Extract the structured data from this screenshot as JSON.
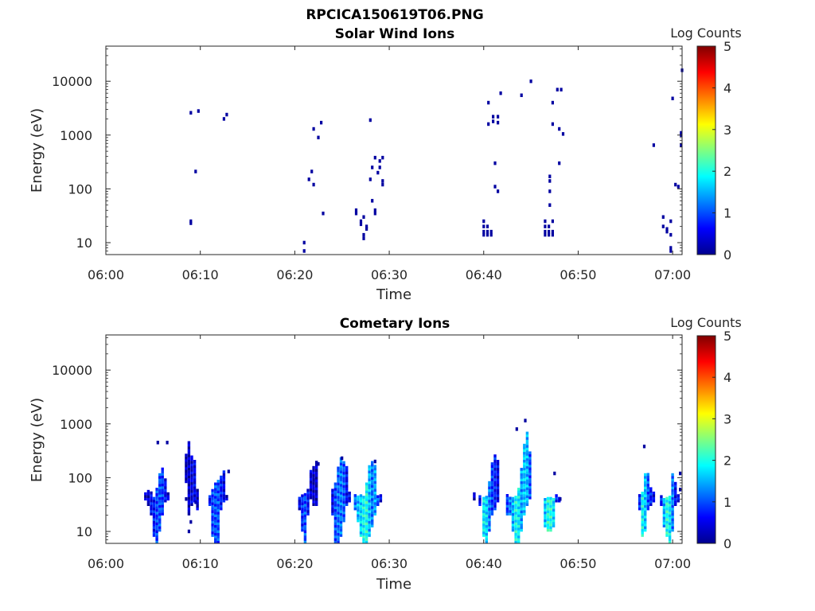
{
  "figure_title": "RPCICA150619T06.PNG",
  "colormap": [
    "#00008f",
    "#0000ff",
    "#0080ff",
    "#00ffff",
    "#80ff80",
    "#ffff00",
    "#ff8000",
    "#ff0000",
    "#800000"
  ],
  "chart_data": [
    {
      "type": "heatmap",
      "title": "Solar Wind Ions",
      "xlabel": "Time",
      "ylabel": "Energy (eV)",
      "y_scale": "log",
      "xlim": [
        "06:00",
        "07:01"
      ],
      "ylim": [
        6,
        45000
      ],
      "x_ticks": [
        "06:00",
        "06:10",
        "06:20",
        "06:30",
        "06:40",
        "06:50",
        "07:00"
      ],
      "y_ticks": [
        "10",
        "100",
        "1000",
        "10000"
      ],
      "colorbar": {
        "label": "Log Counts",
        "range": [
          0,
          5
        ],
        "ticks": [
          "0",
          "1",
          "2",
          "3",
          "4",
          "5"
        ]
      },
      "grid": false,
      "cells": [
        [
          "06:09.0",
          2600,
          0.1
        ],
        [
          "06:09.8",
          2800,
          0.1
        ],
        [
          "06:12.5",
          2000,
          0.1
        ],
        [
          "06:12.8",
          2400,
          0.1
        ],
        [
          "06:09.5",
          210,
          0.1
        ],
        [
          "06:09.0",
          25,
          0.1
        ],
        [
          "06:09.0",
          23,
          0.1
        ],
        [
          "06:21.0",
          10,
          0.1
        ],
        [
          "06:21.0",
          7,
          0.1
        ],
        [
          "06:21.5",
          150,
          0.1
        ],
        [
          "06:21.8",
          210,
          0.1
        ],
        [
          "06:22.0",
          120,
          0.1
        ],
        [
          "06:22.0",
          1300,
          0.1
        ],
        [
          "06:22.5",
          900,
          0.1
        ],
        [
          "06:22.8",
          1700,
          0.1
        ],
        [
          "06:23.0",
          35,
          0.1
        ],
        [
          "06:26.5",
          40,
          0.1
        ],
        [
          "06:26.5",
          35,
          0.1
        ],
        [
          "06:27.0",
          25,
          0.1
        ],
        [
          "06:27.0",
          22,
          0.1
        ],
        [
          "06:27.3",
          30,
          0.1
        ],
        [
          "06:27.3",
          14,
          0.1
        ],
        [
          "06:27.3",
          12,
          0.1
        ],
        [
          "06:27.6",
          20,
          0.1
        ],
        [
          "06:27.6",
          18,
          0.1
        ],
        [
          "06:28.0",
          1900,
          0.1
        ],
        [
          "06:28.0",
          150,
          0.1
        ],
        [
          "06:28.2",
          250,
          0.1
        ],
        [
          "06:28.2",
          60,
          0.1
        ],
        [
          "06:28.5",
          380,
          0.1
        ],
        [
          "06:28.5",
          40,
          0.1
        ],
        [
          "06:28.8",
          200,
          0.1
        ],
        [
          "06:29.0",
          330,
          0.1
        ],
        [
          "06:29.0",
          250,
          0.1
        ],
        [
          "06:29.3",
          380,
          0.1
        ],
        [
          "06:29.3",
          140,
          0.1
        ],
        [
          "06:29.3",
          120,
          0.1
        ],
        [
          "06:28.5",
          35,
          0.1
        ],
        [
          "06:40.5",
          4000,
          0.1
        ],
        [
          "06:40.5",
          1600,
          0.1
        ],
        [
          "06:41.0",
          2200,
          0.1
        ],
        [
          "06:41.0",
          1800,
          0.1
        ],
        [
          "06:41.5",
          2200,
          0.1
        ],
        [
          "06:41.5",
          1700,
          0.1
        ],
        [
          "06:41.8",
          6000,
          0.1
        ],
        [
          "06:41.2",
          300,
          0.1
        ],
        [
          "06:41.2",
          110,
          0.1
        ],
        [
          "06:41.5",
          90,
          0.1
        ],
        [
          "06:44.0",
          5500,
          0.1
        ],
        [
          "06:45.0",
          10000,
          0.1
        ],
        [
          "06:40.0",
          25,
          0.1
        ],
        [
          "06:40.0",
          20,
          0.1
        ],
        [
          "06:40.0",
          16,
          0.1
        ],
        [
          "06:40.0",
          14,
          0.1
        ],
        [
          "06:40.4",
          20,
          0.1
        ],
        [
          "06:40.4",
          16,
          0.1
        ],
        [
          "06:40.4",
          14,
          0.1
        ],
        [
          "06:40.8",
          16,
          0.1
        ],
        [
          "06:40.8",
          14,
          0.1
        ],
        [
          "06:46.5",
          25,
          0.1
        ],
        [
          "06:46.5",
          20,
          0.1
        ],
        [
          "06:46.5",
          16,
          0.1
        ],
        [
          "06:46.5",
          14,
          0.1
        ],
        [
          "06:46.9",
          20,
          0.1
        ],
        [
          "06:46.9",
          16,
          0.1
        ],
        [
          "06:46.9",
          14,
          0.1
        ],
        [
          "06:47.3",
          25,
          0.1
        ],
        [
          "06:47.3",
          16,
          0.1
        ],
        [
          "06:47.3",
          14,
          0.1
        ],
        [
          "06:47.0",
          170,
          0.1
        ],
        [
          "06:47.0",
          140,
          0.1
        ],
        [
          "06:47.0",
          50,
          0.1
        ],
        [
          "06:47.0",
          90,
          0.1
        ],
        [
          "06:47.3",
          1600,
          0.1
        ],
        [
          "06:47.3",
          4000,
          0.1
        ],
        [
          "06:47.8",
          7000,
          0.1
        ],
        [
          "06:48.2",
          7000,
          0.1
        ],
        [
          "06:48.0",
          1300,
          0.1
        ],
        [
          "06:48.4",
          1050,
          0.1
        ],
        [
          "06:48.0",
          300,
          0.1
        ],
        [
          "06:58.0",
          650,
          0.1
        ],
        [
          "06:59.0",
          30,
          0.1
        ],
        [
          "06:59.0",
          20,
          0.1
        ],
        [
          "06:59.4",
          18,
          0.1
        ],
        [
          "06:59.4",
          16,
          0.1
        ],
        [
          "06:59.8",
          25,
          0.1
        ],
        [
          "06:59.8",
          14,
          0.1
        ],
        [
          "06:59.8",
          8,
          0.1
        ],
        [
          "06:59.8",
          7,
          0.1
        ],
        [
          "07:00.0",
          4800,
          0.1
        ],
        [
          "07:00.3",
          120,
          0.1
        ],
        [
          "07:00.6",
          110,
          0.1
        ],
        [
          "07:00.9",
          1100,
          0.1
        ],
        [
          "07:00.9",
          1000,
          0.1
        ],
        [
          "07:00.9",
          650,
          0.1
        ],
        [
          "07:01.0",
          16000,
          0.1
        ]
      ]
    },
    {
      "type": "heatmap",
      "title": "Cometary Ions",
      "xlabel": "Time",
      "ylabel": "Energy (eV)",
      "y_scale": "log",
      "xlim": [
        "06:00",
        "07:01"
      ],
      "ylim": [
        6,
        45000
      ],
      "x_ticks": [
        "06:00",
        "06:10",
        "06:20",
        "06:30",
        "06:40",
        "06:50",
        "07:00"
      ],
      "y_ticks": [
        "10",
        "100",
        "1000",
        "10000"
      ],
      "colorbar": {
        "label": "Log Counts",
        "range": [
          0,
          5
        ],
        "ticks": [
          "0",
          "1",
          "2",
          "3",
          "4",
          "5"
        ]
      },
      "grid": false,
      "columns": [
        [
          "06:04.2",
          38,
          50,
          0.3
        ],
        [
          "06:04.5",
          30,
          55,
          0.3
        ],
        [
          "06:04.8",
          20,
          50,
          0.6
        ],
        [
          "06:05.1",
          8,
          40,
          0.7
        ],
        [
          "06:05.4",
          6,
          60,
          0.9
        ],
        [
          "06:05.7",
          10,
          120,
          1.0
        ],
        [
          "06:06.0",
          20,
          150,
          0.9
        ],
        [
          "06:06.3",
          35,
          90,
          0.6
        ],
        [
          "06:06.6",
          38,
          50,
          0.4
        ],
        [
          "06:08.5",
          80,
          250,
          0.2
        ],
        [
          "06:08.8",
          20,
          450,
          0.3
        ],
        [
          "06:09.1",
          30,
          250,
          0.4
        ],
        [
          "06:09.4",
          35,
          200,
          0.5
        ],
        [
          "06:09.7",
          25,
          60,
          0.3
        ],
        [
          "06:11.0",
          30,
          45,
          0.6
        ],
        [
          "06:11.3",
          8,
          60,
          0.9
        ],
        [
          "06:11.6",
          6,
          80,
          1.0
        ],
        [
          "06:11.9",
          6,
          90,
          1.0
        ],
        [
          "06:12.2",
          25,
          100,
          0.7
        ],
        [
          "06:12.5",
          35,
          130,
          0.5
        ],
        [
          "06:12.8",
          38,
          45,
          0.3
        ],
        [
          "06:20.5",
          25,
          40,
          0.5
        ],
        [
          "06:20.8",
          10,
          45,
          0.8
        ],
        [
          "06:21.1",
          6,
          50,
          1.0
        ],
        [
          "06:21.4",
          20,
          60,
          0.6
        ],
        [
          "06:21.7",
          40,
          130,
          0.4
        ],
        [
          "06:22.0",
          30,
          150,
          0.3
        ],
        [
          "06:22.3",
          30,
          200,
          0.3
        ],
        [
          "06:24.0",
          20,
          60,
          0.5
        ],
        [
          "06:24.3",
          6,
          80,
          1.0
        ],
        [
          "06:24.6",
          6,
          150,
          1.1
        ],
        [
          "06:24.9",
          8,
          220,
          1.2
        ],
        [
          "06:25.2",
          15,
          200,
          1.0
        ],
        [
          "06:25.5",
          30,
          150,
          0.6
        ],
        [
          "06:25.8",
          35,
          50,
          0.5
        ],
        [
          "06:26.4",
          25,
          45,
          1.2
        ],
        [
          "06:26.7",
          15,
          45,
          1.5
        ],
        [
          "06:27.0",
          8,
          45,
          1.7
        ],
        [
          "06:27.3",
          6,
          45,
          1.9
        ],
        [
          "06:27.6",
          6,
          80,
          2.0
        ],
        [
          "06:27.9",
          8,
          160,
          1.5
        ],
        [
          "06:28.2",
          12,
          200,
          1.2
        ],
        [
          "06:28.5",
          20,
          160,
          1.4
        ],
        [
          "06:28.8",
          30,
          45,
          1.0
        ],
        [
          "06:29.1",
          35,
          45,
          0.5
        ],
        [
          "06:39.0",
          38,
          50,
          0.3
        ],
        [
          "06:39.6",
          30,
          45,
          0.5
        ],
        [
          "06:40.0",
          8,
          40,
          1.8
        ],
        [
          "06:40.3",
          6,
          45,
          1.7
        ],
        [
          "06:40.6",
          10,
          80,
          1.2
        ],
        [
          "06:40.9",
          20,
          180,
          0.9
        ],
        [
          "06:41.2",
          25,
          250,
          0.7
        ],
        [
          "06:41.5",
          35,
          200,
          0.5
        ],
        [
          "06:42.5",
          20,
          45,
          0.9
        ],
        [
          "06:42.8",
          20,
          40,
          1.2
        ],
        [
          "06:43.1",
          10,
          40,
          1.5
        ],
        [
          "06:43.4",
          6,
          45,
          1.9
        ],
        [
          "06:43.7",
          6,
          60,
          1.8
        ],
        [
          "06:44.0",
          10,
          150,
          1.4
        ],
        [
          "06:44.3",
          20,
          400,
          1.6
        ],
        [
          "06:44.6",
          30,
          700,
          1.5
        ],
        [
          "06:44.9",
          40,
          300,
          1.0
        ],
        [
          "06:46.5",
          12,
          40,
          1.6
        ],
        [
          "06:46.8",
          10,
          40,
          2.0
        ],
        [
          "06:47.1",
          10,
          40,
          2.0
        ],
        [
          "06:47.4",
          12,
          40,
          1.7
        ],
        [
          "06:47.7",
          35,
          45,
          0.7
        ],
        [
          "06:48.0",
          35,
          40,
          0.5
        ],
        [
          "06:56.5",
          25,
          45,
          0.8
        ],
        [
          "06:56.8",
          8,
          50,
          1.9
        ],
        [
          "06:57.1",
          10,
          120,
          1.6
        ],
        [
          "06:57.4",
          25,
          120,
          1.0
        ],
        [
          "06:57.7",
          30,
          60,
          0.7
        ],
        [
          "06:58.0",
          35,
          50,
          0.5
        ],
        [
          "06:58.8",
          30,
          45,
          0.7
        ],
        [
          "06:59.1",
          12,
          40,
          1.5
        ],
        [
          "06:59.4",
          8,
          40,
          2.0
        ],
        [
          "06:59.7",
          6,
          45,
          1.8
        ],
        [
          "07:00.0",
          10,
          120,
          1.2
        ],
        [
          "07:00.3",
          30,
          80,
          0.6
        ],
        [
          "07:00.6",
          35,
          45,
          0.5
        ]
      ],
      "cells": [
        [
          "06:05.5",
          450,
          0.1
        ],
        [
          "06:06.5",
          450,
          0.1
        ],
        [
          "06:08.5",
          40,
          0.1
        ],
        [
          "06:09.0",
          15,
          0.1
        ],
        [
          "06:08.8",
          10,
          0.1
        ],
        [
          "06:09.5",
          35,
          0.2
        ],
        [
          "06:13.0",
          130,
          0.1
        ],
        [
          "06:22.0",
          90,
          0.1
        ],
        [
          "06:22.5",
          180,
          0.1
        ],
        [
          "06:25.0",
          230,
          0.1
        ],
        [
          "06:28.5",
          200,
          0.1
        ],
        [
          "06:43.5",
          800,
          0.1
        ],
        [
          "06:44.4",
          1150,
          0.1
        ],
        [
          "06:47.5",
          120,
          0.1
        ],
        [
          "06:48.1",
          40,
          0.1
        ],
        [
          "06:57.0",
          380,
          0.1
        ],
        [
          "07:00.8",
          120,
          0.1
        ],
        [
          "07:00.8",
          60,
          0.1
        ]
      ]
    }
  ]
}
